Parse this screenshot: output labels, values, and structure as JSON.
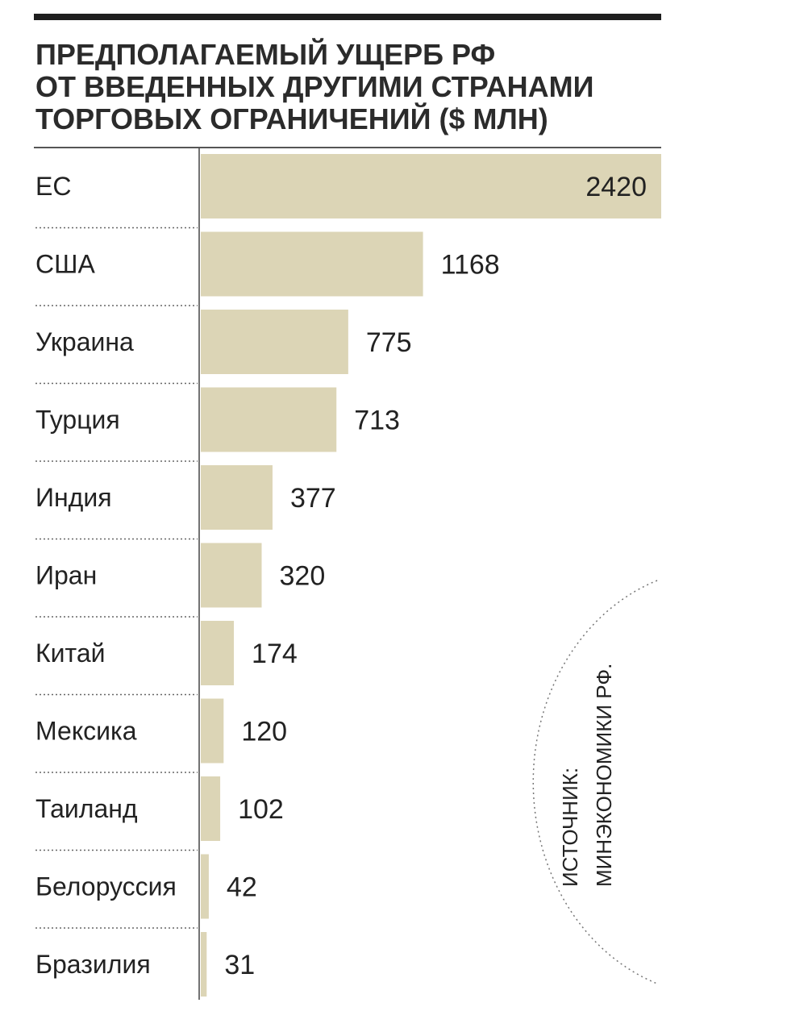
{
  "chart_data": {
    "type": "bar",
    "orientation": "horizontal",
    "title_lines": [
      "ПРЕДПОЛАГАЕМЫЙ УЩЕРБ РФ",
      "ОТ ВВЕДЕННЫХ ДРУГИМИ СТРАНАМИ",
      "ТОРГОВЫХ ОГРАНИЧЕНИЙ ($ МЛН)"
    ],
    "categories": [
      "ЕС",
      "США",
      "Украина",
      "Турция",
      "Индия",
      "Иран",
      "Китай",
      "Мексика",
      "Таиланд",
      "Белоруссия",
      "Бразилия"
    ],
    "values": [
      2420,
      1168,
      775,
      713,
      377,
      320,
      174,
      120,
      102,
      42,
      31
    ],
    "value_labels": [
      "2420",
      "1168",
      "775",
      "713",
      "377",
      "320",
      "174",
      "120",
      "102",
      "42",
      "31"
    ],
    "xlim": [
      0,
      2420
    ],
    "grid": false,
    "legend": "none",
    "bar_color": "#dcd5b6",
    "source_lines": [
      "ИСТОЧНИК:",
      "МИНЭКОНОМИКИ РФ."
    ]
  }
}
